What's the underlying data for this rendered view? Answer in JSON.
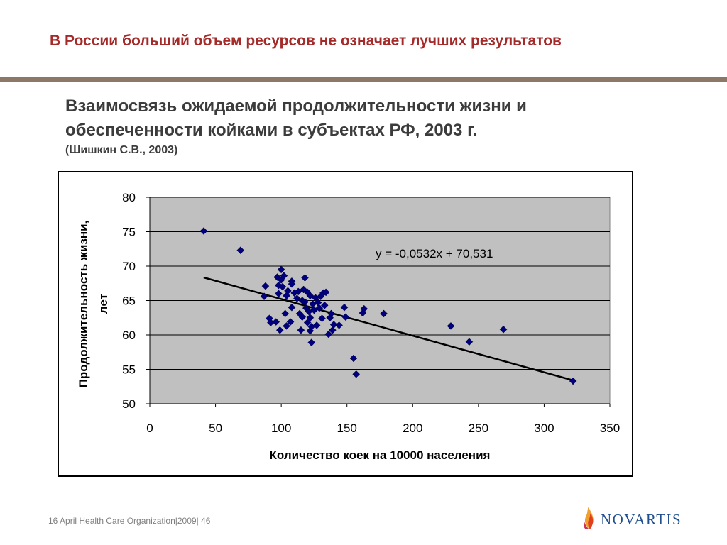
{
  "header": {
    "title": "В России больший объем ресурсов не означает лучших результатов"
  },
  "subtitle": {
    "line1": "Взаимосвязь ожидаемой продолжительности жизни и",
    "line2": "обеспеченности койками в субъектах РФ, 2003 г.",
    "source": "(Шишкин С.В., 2003)"
  },
  "chart_data": {
    "type": "scatter",
    "title": "",
    "xlabel": "Количество коек на 10000 населения",
    "ylabel_line1": "Продолжительность жизни,",
    "ylabel_line2": "лет",
    "xlim": [
      0,
      350
    ],
    "ylim": [
      50,
      80
    ],
    "x_ticks": [
      0,
      50,
      100,
      150,
      200,
      250,
      300,
      350
    ],
    "y_ticks": [
      50,
      55,
      60,
      65,
      70,
      75,
      80
    ],
    "grid": true,
    "equation": "y = -0,0532x + 70,531",
    "trendline": {
      "slope": -0.0532,
      "intercept": 70.531,
      "x_range": [
        41,
        322
      ]
    },
    "points": [
      [
        41,
        75.1
      ],
      [
        69,
        72.3
      ],
      [
        87,
        65.6
      ],
      [
        88,
        67.1
      ],
      [
        91,
        62.4
      ],
      [
        92,
        61.8
      ],
      [
        96,
        61.9
      ],
      [
        97,
        68.4
      ],
      [
        98,
        67.2
      ],
      [
        98,
        66.0
      ],
      [
        99,
        60.7
      ],
      [
        100,
        69.5
      ],
      [
        100,
        68.0
      ],
      [
        101,
        67.0
      ],
      [
        102,
        68.6
      ],
      [
        103,
        63.1
      ],
      [
        104,
        65.7
      ],
      [
        104,
        61.3
      ],
      [
        105,
        66.4
      ],
      [
        107,
        61.9
      ],
      [
        108,
        64.0
      ],
      [
        108,
        67.8
      ],
      [
        108,
        67.4
      ],
      [
        110,
        66.1
      ],
      [
        112,
        65.3
      ],
      [
        113,
        66.3
      ],
      [
        114,
        63.1
      ],
      [
        115,
        60.7
      ],
      [
        116,
        62.6
      ],
      [
        116,
        65.0
      ],
      [
        117,
        66.6
      ],
      [
        118,
        64.8
      ],
      [
        118,
        68.3
      ],
      [
        119,
        63.9
      ],
      [
        120,
        61.8
      ],
      [
        120,
        66.2
      ],
      [
        121,
        63.4
      ],
      [
        122,
        62.5
      ],
      [
        122,
        65.7
      ],
      [
        122,
        60.6
      ],
      [
        123,
        58.9
      ],
      [
        123,
        61.2
      ],
      [
        124,
        64.5
      ],
      [
        125,
        63.6
      ],
      [
        126,
        65.4
      ],
      [
        127,
        61.4
      ],
      [
        128,
        64.7
      ],
      [
        129,
        63.9
      ],
      [
        130,
        65.6
      ],
      [
        131,
        62.4
      ],
      [
        132,
        66.1
      ],
      [
        133,
        64.3
      ],
      [
        134,
        66.2
      ],
      [
        136,
        60.1
      ],
      [
        137,
        62.5
      ],
      [
        138,
        63.1
      ],
      [
        139,
        60.7
      ],
      [
        140,
        61.5
      ],
      [
        144,
        61.4
      ],
      [
        148,
        64.0
      ],
      [
        149,
        62.6
      ],
      [
        155,
        56.6
      ],
      [
        157,
        54.3
      ],
      [
        162,
        63.2
      ],
      [
        163,
        63.8
      ],
      [
        178,
        63.1
      ],
      [
        229,
        61.3
      ],
      [
        243,
        59.0
      ],
      [
        269,
        60.8
      ],
      [
        322,
        53.3
      ]
    ],
    "marker_color": "#00007f",
    "plot_bg": "#c0c0c0",
    "trend_color": "#000000"
  },
  "footer": {
    "text": "16 April Health Care Organization|2009| 46"
  },
  "logo": {
    "text": "NOVARTIS",
    "icon": "flame-logo-icon"
  }
}
